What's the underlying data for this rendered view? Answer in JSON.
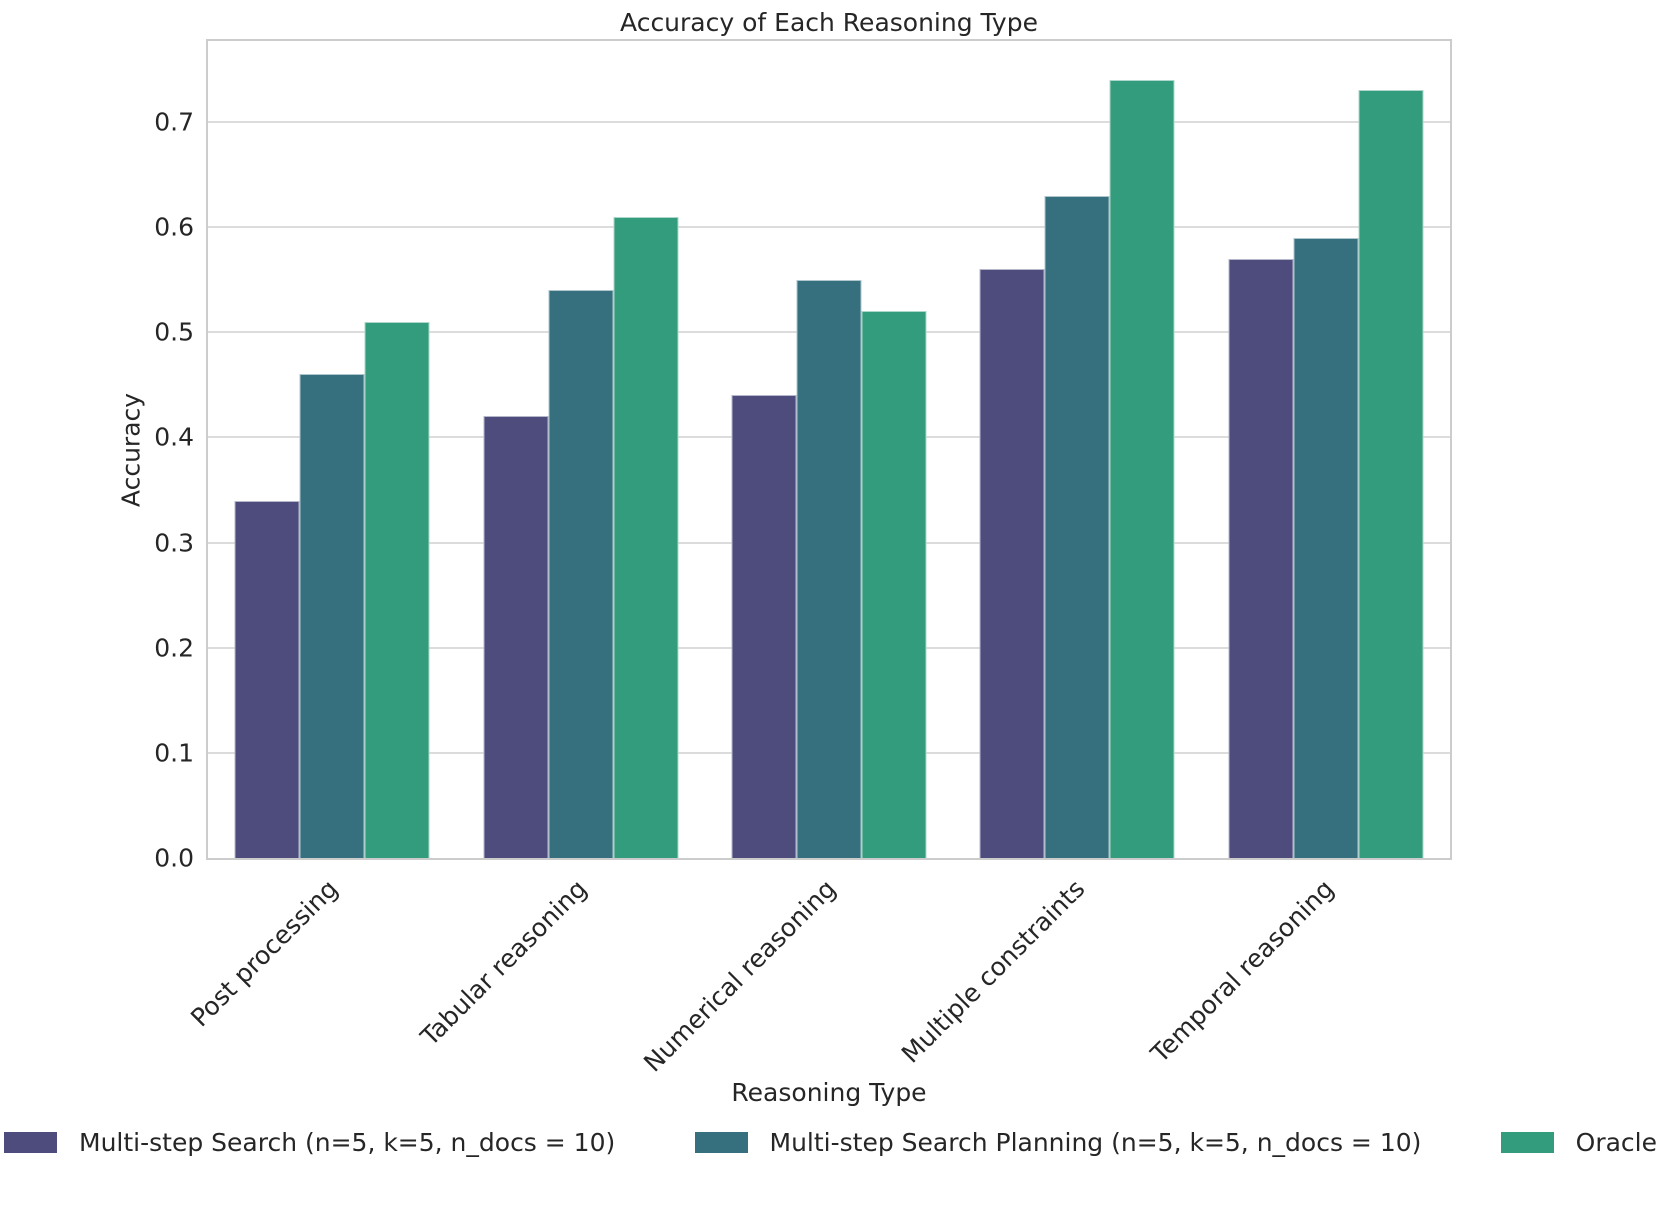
{
  "chart_data": {
    "type": "bar",
    "title": "Accuracy of Each Reasoning Type",
    "xlabel": "Reasoning Type",
    "ylabel": "Accuracy",
    "categories": [
      "Post processing",
      "Tabular reasoning",
      "Numerical reasoning",
      "Multiple constraints",
      "Temporal reasoning"
    ],
    "series": [
      {
        "name": "Multi-step Search (n=5, k=5, n_docs = 10)",
        "color": "#4D4C7D",
        "values": [
          0.34,
          0.42,
          0.44,
          0.56,
          0.57
        ]
      },
      {
        "name": "Multi-step Search Planning (n=5, k=5, n_docs = 10)",
        "color": "#36707F",
        "values": [
          0.46,
          0.54,
          0.55,
          0.63,
          0.59
        ]
      },
      {
        "name": "Oracle",
        "color": "#339C7C",
        "values": [
          0.51,
          0.61,
          0.52,
          0.74,
          0.73
        ]
      }
    ],
    "yticks": [
      0.0,
      0.1,
      0.2,
      0.3,
      0.4,
      0.5,
      0.6,
      0.7
    ],
    "ytick_label_format": "one_decimal",
    "ylim": [
      0,
      0.777
    ],
    "grid": true,
    "grid_color": "#dcdcdc",
    "spine_color": "#cccccc",
    "text_color": "#262626",
    "legend_position": "bottom"
  }
}
